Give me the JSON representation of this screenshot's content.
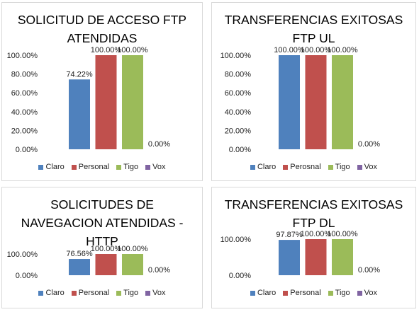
{
  "chart_data": [
    {
      "type": "bar",
      "title_lines": [
        "SOLICITUD DE ACCESO FTP",
        "ATENDIDAS"
      ],
      "categories": [
        "Claro",
        "Personal",
        "Tigo",
        "Vox"
      ],
      "values": [
        74.22,
        100.0,
        100.0,
        0.0
      ],
      "data_labels": [
        "74.22%",
        "100.00%",
        "100.00%",
        "0.00%"
      ],
      "ylim": [
        0,
        100
      ],
      "y_ticks": [
        "0.00%",
        "20.00%",
        "40.00%",
        "60.00%",
        "80.00%",
        "100.00%"
      ],
      "legend": [
        "Claro",
        "Personal",
        "Tigo",
        "Vox"
      ],
      "legend_position": "bottom",
      "colors": [
        "#4f81bd",
        "#c0504d",
        "#9bbb59",
        "#8064a2"
      ]
    },
    {
      "type": "bar",
      "title_lines": [
        "TRANSFERENCIAS EXITOSAS",
        "FTP UL"
      ],
      "categories": [
        "Claro",
        "Perosnal",
        "Tigo",
        "Vox"
      ],
      "values": [
        100.0,
        100.0,
        100.0,
        0.0
      ],
      "data_labels": [
        "100.00%",
        "100.00%",
        "100.00%",
        "0.00%"
      ],
      "ylim": [
        0,
        100
      ],
      "y_ticks": [
        "0.00%",
        "20.00%",
        "40.00%",
        "60.00%",
        "80.00%",
        "100.00%"
      ],
      "legend": [
        "Claro",
        "Perosnal",
        "Tigo",
        "Vox"
      ],
      "legend_position": "bottom",
      "colors": [
        "#4f81bd",
        "#c0504d",
        "#9bbb59",
        "#8064a2"
      ]
    },
    {
      "type": "bar",
      "title_lines": [
        "SOLICITUDES DE",
        "NAVEGACION ATENDIDAS -",
        "HTTP"
      ],
      "categories": [
        "Claro",
        "Personal",
        "Tigo",
        "Vox"
      ],
      "values": [
        76.56,
        100.0,
        100.0,
        0.0
      ],
      "data_labels": [
        "76.56%",
        "100.00%",
        "100.00%",
        "0.00%"
      ],
      "ylim": [
        0,
        100
      ],
      "y_ticks": [
        "0.00%",
        "100.00%"
      ],
      "legend": [
        "Claro",
        "Personal",
        "Tigo",
        "Vox"
      ],
      "legend_position": "bottom",
      "colors": [
        "#4f81bd",
        "#c0504d",
        "#9bbb59",
        "#8064a2"
      ]
    },
    {
      "type": "bar",
      "title_lines": [
        "TRANSFERENCIAS EXITOSAS",
        "FTP DL"
      ],
      "categories": [
        "Claro",
        "Personal",
        "Tigo",
        "Vox"
      ],
      "values": [
        97.87,
        100.0,
        100.0,
        0.0
      ],
      "data_labels": [
        "97.87%",
        "100.00%",
        "100.00%",
        "0.00%"
      ],
      "ylim": [
        0,
        100
      ],
      "y_ticks": [
        "0.00%",
        "100.00%"
      ],
      "legend": [
        "Claro",
        "Personal",
        "Tigo",
        "Vox"
      ],
      "legend_position": "bottom",
      "colors": [
        "#4f81bd",
        "#c0504d",
        "#9bbb59",
        "#8064a2"
      ]
    }
  ]
}
